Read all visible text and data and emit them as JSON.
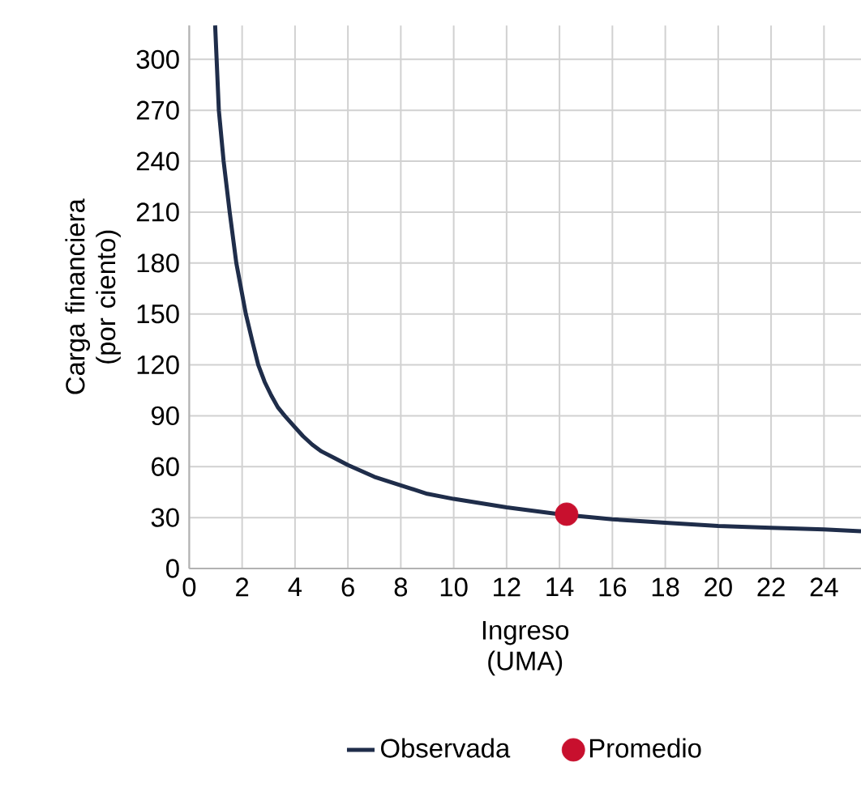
{
  "chart_data": {
    "type": "line",
    "xlabel": "Ingreso (UMA)",
    "ylabel": "Carga financiera (por ciento)",
    "xlim": [
      0,
      25.4
    ],
    "ylim": [
      0,
      320
    ],
    "xticks": [
      0,
      2,
      4,
      6,
      8,
      10,
      12,
      14,
      16,
      18,
      20,
      22,
      24
    ],
    "yticks": [
      0,
      30,
      60,
      90,
      120,
      150,
      180,
      210,
      240,
      270,
      300
    ],
    "grid": true,
    "legend": "bottom",
    "series": [
      {
        "name": "Observada",
        "color": "#1f2d4a",
        "marker": "none",
        "x": [
          0.98,
          1.12,
          1.3,
          1.53,
          1.78,
          2.14,
          2.4,
          2.61,
          2.85,
          3.1,
          3.35,
          3.61,
          3.95,
          4.3,
          4.65,
          5,
          5.5,
          6,
          7,
          8,
          9,
          10,
          12,
          14,
          16,
          18,
          20,
          22,
          24,
          25.4
        ],
        "values": [
          320,
          270,
          240,
          210,
          180,
          150,
          133,
          120,
          110,
          102,
          95,
          90,
          84,
          78,
          73,
          69,
          65,
          61,
          54,
          49,
          44,
          41,
          36,
          32,
          29,
          27,
          25,
          24,
          23,
          22
        ]
      },
      {
        "name": "Promedio",
        "type": "scatter",
        "color": "#c8102e",
        "marker": "circle",
        "x": [
          14.27
        ],
        "values": [
          32
        ]
      }
    ]
  }
}
